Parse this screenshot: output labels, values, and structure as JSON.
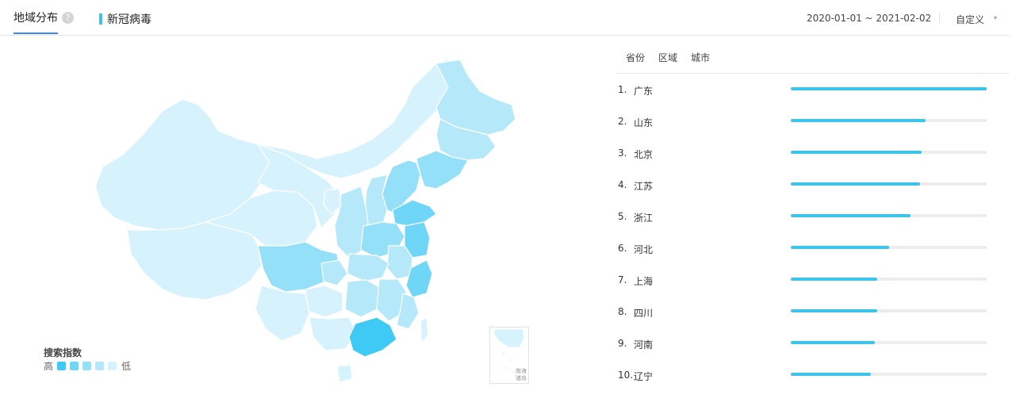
{
  "tabs": {
    "geo_label": "地域分布",
    "help_icon": "?",
    "keyword": "新冠病毒"
  },
  "date_range": {
    "value": "2020-01-01 ~ 2021-02-02",
    "custom_label": "自定义",
    "caret": "▾"
  },
  "legend": {
    "title": "搜索指数",
    "high": "高",
    "low": "低",
    "colors": [
      "#3fc9f5",
      "#6fd6f7",
      "#93e0f8",
      "#b5e9fa",
      "#d6f2fc"
    ]
  },
  "inset": {
    "label_line1": "南海",
    "label_line2": "诸岛"
  },
  "sub_tabs": [
    "省份",
    "区域",
    "城市"
  ],
  "ranking": [
    {
      "rank": "1.",
      "name": "广东",
      "value": 1.0
    },
    {
      "rank": "2.",
      "name": "山东",
      "value": 0.69
    },
    {
      "rank": "3.",
      "name": "北京",
      "value": 0.67
    },
    {
      "rank": "4.",
      "name": "江苏",
      "value": 0.66
    },
    {
      "rank": "5.",
      "name": "浙江",
      "value": 0.61
    },
    {
      "rank": "6.",
      "name": "河北",
      "value": 0.5
    },
    {
      "rank": "7.",
      "name": "上海",
      "value": 0.44
    },
    {
      "rank": "8.",
      "name": "四川",
      "value": 0.44
    },
    {
      "rank": "9.",
      "name": "河南",
      "value": 0.43
    },
    {
      "rank": "10.",
      "name": "辽宁",
      "value": 0.41
    }
  ]
}
